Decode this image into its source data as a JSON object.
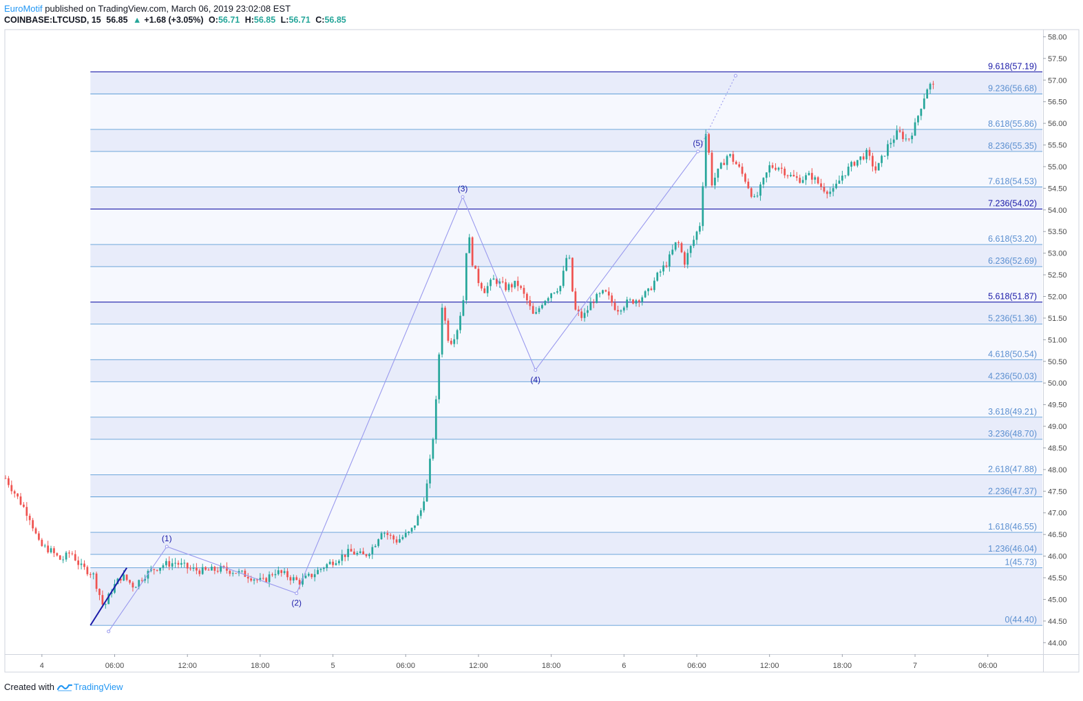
{
  "header": {
    "author": "EuroMotif",
    "published": "published on TradingView.com, March 06, 2019 23:02:08 EST",
    "symbol": "COINBASE:LTCUSD, 15",
    "last": "56.85",
    "change": "+1.68 (+3.05%)",
    "o_label": "O:",
    "o_value": "56.71",
    "h_label": "H:",
    "h_value": "56.85",
    "l_label": "L:",
    "l_value": "56.71",
    "c_label": "C:",
    "c_value": "56.85"
  },
  "footer": {
    "created": "Created with",
    "brand": "TradingView"
  },
  "colors": {
    "up": "#26a69a",
    "down": "#ef5350",
    "fib_line": "#5b9bd5",
    "fib_major": "#1a1aa8",
    "fib_fill": "#e8ecfa",
    "wave": "#9999ee",
    "trend": "#1a1aa8",
    "axis_text": "#4a4a4a"
  },
  "chart_data": {
    "type": "candlestick",
    "symbol": "COINBASE:LTCUSD",
    "interval": "15",
    "y_axis": {
      "ticks": [
        "58.00",
        "57.50",
        "57.00",
        "56.50",
        "56.00",
        "55.50",
        "55.00",
        "54.50",
        "54.00",
        "53.50",
        "53.00",
        "52.50",
        "52.00",
        "51.50",
        "51.00",
        "50.50",
        "50.00",
        "49.50",
        "49.00",
        "48.50",
        "48.00",
        "47.50",
        "47.00",
        "46.50",
        "46.00",
        "45.50",
        "45.00",
        "44.50",
        "44.00"
      ],
      "range": [
        43.75,
        58.15
      ]
    },
    "x_axis": {
      "ticks": [
        "4",
        "06:00",
        "12:00",
        "18:00",
        "5",
        "06:00",
        "12:00",
        "18:00",
        "6",
        "06:00",
        "12:00",
        "18:00",
        "7",
        "06:00"
      ],
      "tick_hours": [
        0,
        6,
        12,
        18,
        24,
        30,
        36,
        42,
        48,
        54,
        60,
        66,
        72,
        78
      ],
      "range_hours": [
        -3.0,
        82.5
      ]
    },
    "fibonacci_extension": [
      {
        "ratio": "9.618",
        "price": "57.19",
        "major": true
      },
      {
        "ratio": "9.236",
        "price": "56.68",
        "major": false
      },
      {
        "ratio": "8.618",
        "price": "55.86",
        "major": false
      },
      {
        "ratio": "8.236",
        "price": "55.35",
        "major": false
      },
      {
        "ratio": "7.618",
        "price": "54.53",
        "major": false
      },
      {
        "ratio": "7.236",
        "price": "54.02",
        "major": true
      },
      {
        "ratio": "6.618",
        "price": "53.20",
        "major": false
      },
      {
        "ratio": "6.236",
        "price": "52.69",
        "major": false
      },
      {
        "ratio": "5.618",
        "price": "51.87",
        "major": true
      },
      {
        "ratio": "5.236",
        "price": "51.36",
        "major": false
      },
      {
        "ratio": "4.618",
        "price": "50.54",
        "major": false
      },
      {
        "ratio": "4.236",
        "price": "50.03",
        "major": false
      },
      {
        "ratio": "3.618",
        "price": "49.21",
        "major": false
      },
      {
        "ratio": "3.236",
        "price": "48.70",
        "major": false
      },
      {
        "ratio": "2.618",
        "price": "47.88",
        "major": false
      },
      {
        "ratio": "2.236",
        "price": "47.37",
        "major": false
      },
      {
        "ratio": "1.618",
        "price": "46.55",
        "major": false
      },
      {
        "ratio": "1.236",
        "price": "46.04",
        "major": false
      },
      {
        "ratio": "1",
        "price": "45.73",
        "major": false
      },
      {
        "ratio": "0",
        "price": "44.40",
        "major": false
      }
    ],
    "fib_start_hour": 4.0,
    "trend_line": [
      [
        4.0,
        44.4
      ],
      [
        7.0,
        45.73
      ]
    ],
    "elliott_wave": [
      {
        "label": "",
        "t": 5.5,
        "p": 44.26
      },
      {
        "label": "(1)",
        "t": 10.3,
        "p": 46.22
      },
      {
        "label": "(2)",
        "t": 21.0,
        "p": 45.14
      },
      {
        "label": "(3)",
        "t": 34.7,
        "p": 54.3
      },
      {
        "label": "(4)",
        "t": 40.7,
        "p": 50.3
      },
      {
        "label": "(5)",
        "t": 54.1,
        "p": 55.35
      },
      {
        "label": "",
        "t": 57.2,
        "p": 57.1
      }
    ],
    "ohlc_path": [
      [
        -3.0,
        47.8
      ],
      [
        -2.0,
        47.35
      ],
      [
        -1.0,
        46.9
      ],
      [
        -0.2,
        46.25
      ],
      [
        0.6,
        46.15
      ],
      [
        1.6,
        45.9
      ],
      [
        2.4,
        46.1
      ],
      [
        3.2,
        45.75
      ],
      [
        4.2,
        45.6
      ],
      [
        5.1,
        44.8
      ],
      [
        5.8,
        45.25
      ],
      [
        6.6,
        45.55
      ],
      [
        7.6,
        45.3
      ],
      [
        8.4,
        45.55
      ],
      [
        9.2,
        45.7
      ],
      [
        10.0,
        45.8
      ],
      [
        11.0,
        45.85
      ],
      [
        12.2,
        45.7
      ],
      [
        13.4,
        45.65
      ],
      [
        14.8,
        45.7
      ],
      [
        15.8,
        45.65
      ],
      [
        17.0,
        45.55
      ],
      [
        18.2,
        45.4
      ],
      [
        19.2,
        45.65
      ],
      [
        20.2,
        45.55
      ],
      [
        21.2,
        45.4
      ],
      [
        22.2,
        45.55
      ],
      [
        23.2,
        45.75
      ],
      [
        24.4,
        45.95
      ],
      [
        25.4,
        46.1
      ],
      [
        26.6,
        46.0
      ],
      [
        27.4,
        46.25
      ],
      [
        28.0,
        46.6
      ],
      [
        29.2,
        46.35
      ],
      [
        30.4,
        46.55
      ],
      [
        31.2,
        47.0
      ],
      [
        31.8,
        47.7
      ],
      [
        32.4,
        49.1
      ],
      [
        33.0,
        51.8
      ],
      [
        33.6,
        50.9
      ],
      [
        34.2,
        51.2
      ],
      [
        34.8,
        52.0
      ],
      [
        35.1,
        53.6
      ],
      [
        35.5,
        52.8
      ],
      [
        35.9,
        52.4
      ],
      [
        36.5,
        52.15
      ],
      [
        37.3,
        52.4
      ],
      [
        38.2,
        52.2
      ],
      [
        39.2,
        52.3
      ],
      [
        40.0,
        51.9
      ],
      [
        40.6,
        51.5
      ],
      [
        41.2,
        51.85
      ],
      [
        42.0,
        52.1
      ],
      [
        42.8,
        52.25
      ],
      [
        43.4,
        53.1
      ],
      [
        43.9,
        51.7
      ],
      [
        44.6,
        51.5
      ],
      [
        45.4,
        51.9
      ],
      [
        46.4,
        52.1
      ],
      [
        47.4,
        51.7
      ],
      [
        48.2,
        51.85
      ],
      [
        49.2,
        51.95
      ],
      [
        50.0,
        52.1
      ],
      [
        50.8,
        52.5
      ],
      [
        51.6,
        52.8
      ],
      [
        52.4,
        53.3
      ],
      [
        53.0,
        52.8
      ],
      [
        53.6,
        53.2
      ],
      [
        54.3,
        53.7
      ],
      [
        54.8,
        56.0
      ],
      [
        55.2,
        54.6
      ],
      [
        55.8,
        54.9
      ],
      [
        56.6,
        55.3
      ],
      [
        57.4,
        55.0
      ],
      [
        58.0,
        54.7
      ],
      [
        58.8,
        54.2
      ],
      [
        59.4,
        54.6
      ],
      [
        60.0,
        55.0
      ],
      [
        60.8,
        55.0
      ],
      [
        61.6,
        54.8
      ],
      [
        62.4,
        54.7
      ],
      [
        63.4,
        54.8
      ],
      [
        64.4,
        54.5
      ],
      [
        65.2,
        54.4
      ],
      [
        66.0,
        54.8
      ],
      [
        67.0,
        55.1
      ],
      [
        68.0,
        55.3
      ],
      [
        68.8,
        54.9
      ],
      [
        69.8,
        55.5
      ],
      [
        70.6,
        55.8
      ],
      [
        71.4,
        55.6
      ],
      [
        72.0,
        55.95
      ],
      [
        72.6,
        56.5
      ],
      [
        73.1,
        56.9
      ],
      [
        73.5,
        56.85
      ]
    ]
  }
}
